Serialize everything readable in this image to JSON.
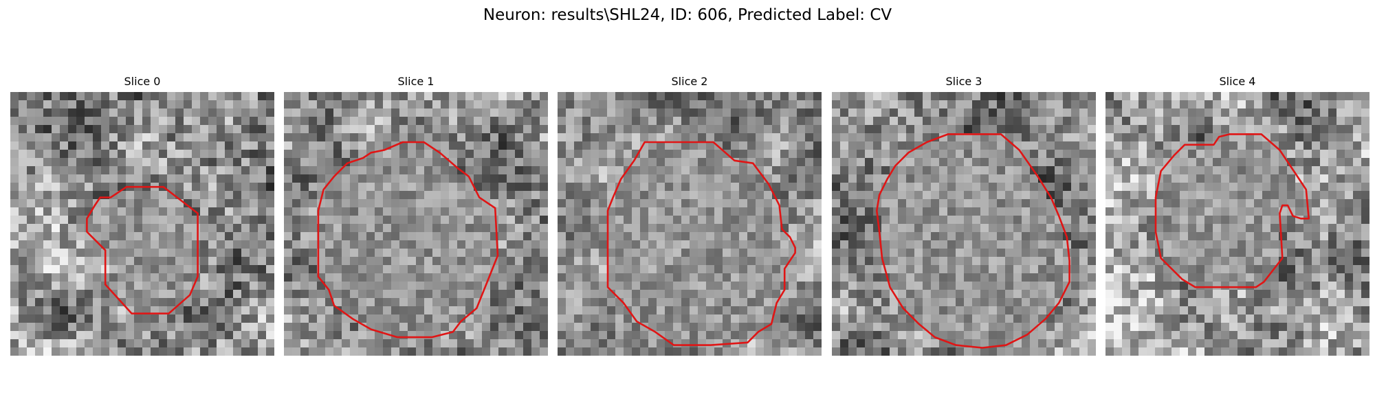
{
  "figure": {
    "title": "Neuron: results\\SHL24, ID: 606, Predicted Label: CV"
  },
  "colors": {
    "contour": "#e01515"
  },
  "slices": [
    {
      "title": "Slice 0",
      "seed": 11,
      "contrast": 0.55,
      "contour": [
        [
          0.44,
          0.36
        ],
        [
          0.58,
          0.36
        ],
        [
          0.71,
          0.46
        ],
        [
          0.71,
          0.7
        ],
        [
          0.68,
          0.77
        ],
        [
          0.6,
          0.84
        ],
        [
          0.46,
          0.84
        ],
        [
          0.36,
          0.73
        ],
        [
          0.36,
          0.6
        ],
        [
          0.29,
          0.53
        ],
        [
          0.29,
          0.48
        ],
        [
          0.32,
          0.43
        ],
        [
          0.34,
          0.4
        ],
        [
          0.38,
          0.4
        ]
      ]
    },
    {
      "title": "Slice 1",
      "seed": 23,
      "contrast": 0.48,
      "contour": [
        [
          0.38,
          0.22
        ],
        [
          0.45,
          0.19
        ],
        [
          0.53,
          0.19
        ],
        [
          0.59,
          0.23
        ],
        [
          0.66,
          0.29
        ],
        [
          0.7,
          0.32
        ],
        [
          0.74,
          0.4
        ],
        [
          0.8,
          0.44
        ],
        [
          0.81,
          0.62
        ],
        [
          0.77,
          0.72
        ],
        [
          0.73,
          0.82
        ],
        [
          0.67,
          0.87
        ],
        [
          0.64,
          0.91
        ],
        [
          0.56,
          0.93
        ],
        [
          0.43,
          0.93
        ],
        [
          0.33,
          0.9
        ],
        [
          0.26,
          0.86
        ],
        [
          0.19,
          0.81
        ],
        [
          0.17,
          0.75
        ],
        [
          0.13,
          0.7
        ],
        [
          0.13,
          0.45
        ],
        [
          0.15,
          0.37
        ],
        [
          0.19,
          0.32
        ],
        [
          0.24,
          0.27
        ],
        [
          0.3,
          0.25
        ],
        [
          0.33,
          0.23
        ]
      ]
    },
    {
      "title": "Slice 2",
      "seed": 37,
      "contrast": 0.42,
      "contour": [
        [
          0.33,
          0.19
        ],
        [
          0.59,
          0.19
        ],
        [
          0.67,
          0.26
        ],
        [
          0.74,
          0.27
        ],
        [
          0.8,
          0.35
        ],
        [
          0.84,
          0.43
        ],
        [
          0.85,
          0.52
        ],
        [
          0.88,
          0.55
        ],
        [
          0.9,
          0.59
        ],
        [
          0.9,
          0.61
        ],
        [
          0.86,
          0.67
        ],
        [
          0.86,
          0.75
        ],
        [
          0.83,
          0.8
        ],
        [
          0.81,
          0.88
        ],
        [
          0.76,
          0.91
        ],
        [
          0.72,
          0.95
        ],
        [
          0.58,
          0.96
        ],
        [
          0.44,
          0.96
        ],
        [
          0.37,
          0.91
        ],
        [
          0.3,
          0.87
        ],
        [
          0.25,
          0.8
        ],
        [
          0.19,
          0.74
        ],
        [
          0.19,
          0.45
        ],
        [
          0.21,
          0.4
        ],
        [
          0.24,
          0.33
        ],
        [
          0.29,
          0.26
        ]
      ]
    },
    {
      "title": "Slice 3",
      "seed": 49,
      "contrast": 0.5,
      "contour": [
        [
          0.44,
          0.16
        ],
        [
          0.64,
          0.16
        ],
        [
          0.71,
          0.22
        ],
        [
          0.78,
          0.32
        ],
        [
          0.83,
          0.4
        ],
        [
          0.86,
          0.47
        ],
        [
          0.89,
          0.55
        ],
        [
          0.9,
          0.64
        ],
        [
          0.9,
          0.72
        ],
        [
          0.86,
          0.8
        ],
        [
          0.81,
          0.86
        ],
        [
          0.74,
          0.92
        ],
        [
          0.66,
          0.96
        ],
        [
          0.57,
          0.97
        ],
        [
          0.47,
          0.96
        ],
        [
          0.39,
          0.93
        ],
        [
          0.33,
          0.88
        ],
        [
          0.27,
          0.82
        ],
        [
          0.22,
          0.74
        ],
        [
          0.19,
          0.63
        ],
        [
          0.18,
          0.53
        ],
        [
          0.17,
          0.45
        ],
        [
          0.18,
          0.39
        ],
        [
          0.21,
          0.33
        ],
        [
          0.24,
          0.28
        ],
        [
          0.29,
          0.23
        ],
        [
          0.36,
          0.19
        ]
      ]
    },
    {
      "title": "Slice 4",
      "seed": 61,
      "contrast": 0.55,
      "contour": [
        [
          0.3,
          0.2
        ],
        [
          0.41,
          0.2
        ],
        [
          0.43,
          0.17
        ],
        [
          0.47,
          0.16
        ],
        [
          0.59,
          0.16
        ],
        [
          0.66,
          0.22
        ],
        [
          0.72,
          0.31
        ],
        [
          0.76,
          0.37
        ],
        [
          0.77,
          0.48
        ],
        [
          0.74,
          0.48
        ],
        [
          0.71,
          0.47
        ],
        [
          0.69,
          0.43
        ],
        [
          0.67,
          0.43
        ],
        [
          0.66,
          0.46
        ],
        [
          0.67,
          0.63
        ],
        [
          0.6,
          0.72
        ],
        [
          0.57,
          0.74
        ],
        [
          0.5,
          0.74
        ],
        [
          0.34,
          0.74
        ],
        [
          0.29,
          0.71
        ],
        [
          0.21,
          0.63
        ],
        [
          0.19,
          0.53
        ],
        [
          0.19,
          0.4
        ],
        [
          0.21,
          0.3
        ],
        [
          0.26,
          0.24
        ]
      ]
    }
  ]
}
